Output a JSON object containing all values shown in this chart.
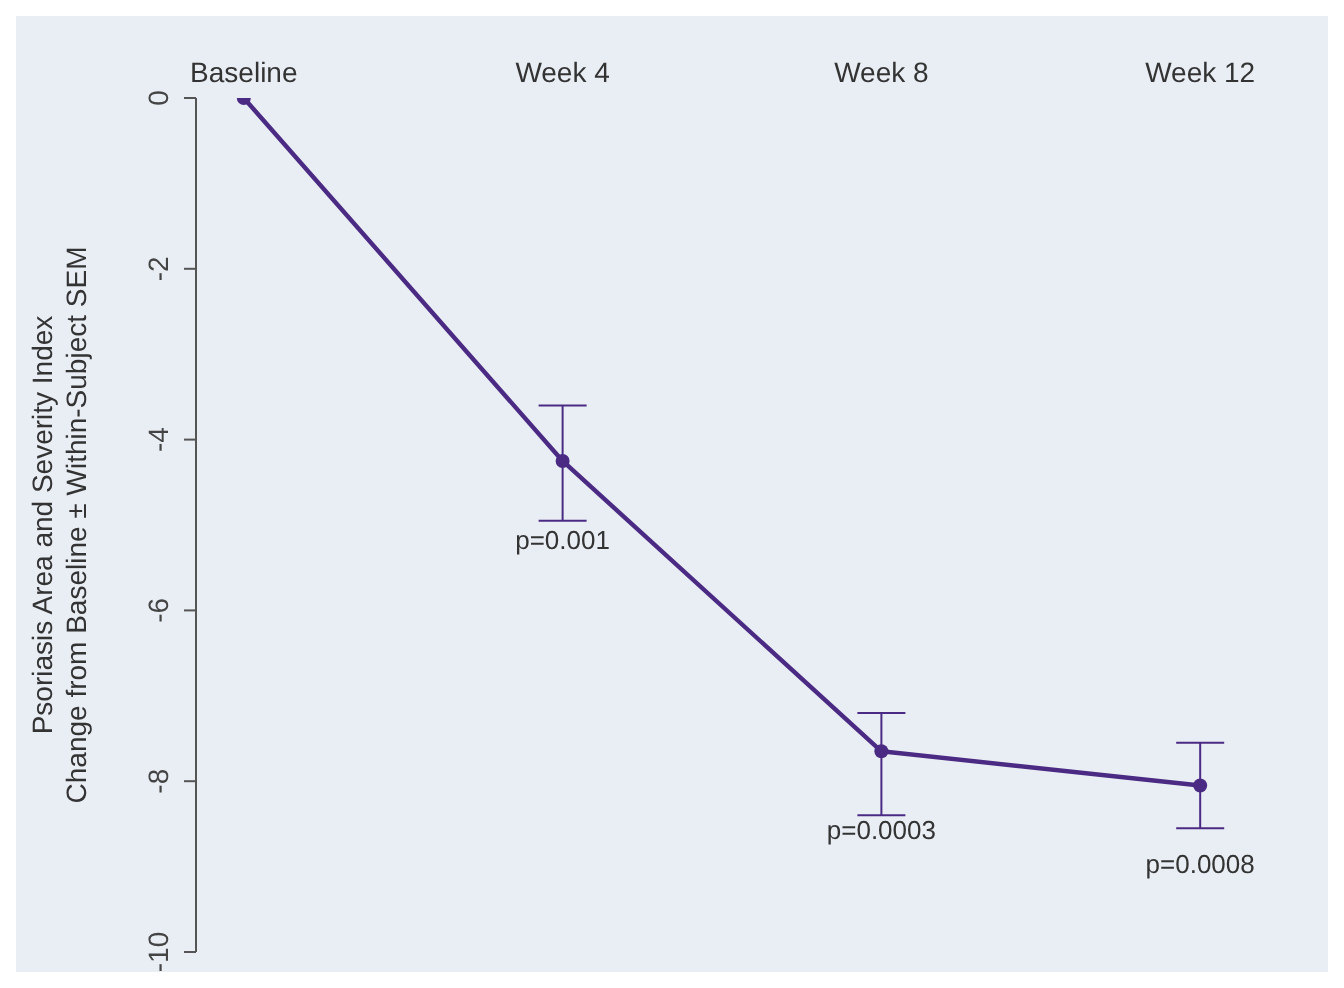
{
  "chart_data": {
    "type": "line",
    "ylabel": "Psoriasis Area and Severity Index\nChange from Baseline ± Within-Subject SEM",
    "categories": [
      "Baseline",
      "Week 4",
      "Week 8",
      "Week 12"
    ],
    "series": [
      {
        "color": "#4b2a84",
        "values": [
          0,
          -4.25,
          -7.65,
          -8.05
        ],
        "errors": [
          null,
          [
            -4.95,
            -3.6
          ],
          [
            -8.4,
            -7.2
          ],
          [
            -8.55,
            -7.55
          ]
        ]
      }
    ],
    "ylim": [
      -10,
      0
    ],
    "yticks": [
      -10,
      -8,
      -6,
      -4,
      -2,
      0
    ],
    "grid": false,
    "legend": false,
    "marker": "circle",
    "line_style": "solid",
    "annotations": [
      {
        "text": "p=0.001",
        "x": "Week 4",
        "y": -4.25
      },
      {
        "text": "p=0.0003",
        "x": "Week 8",
        "y": -7.65
      },
      {
        "text": "p=0.0008",
        "x": "Week 12",
        "y": -8.05
      }
    ]
  }
}
